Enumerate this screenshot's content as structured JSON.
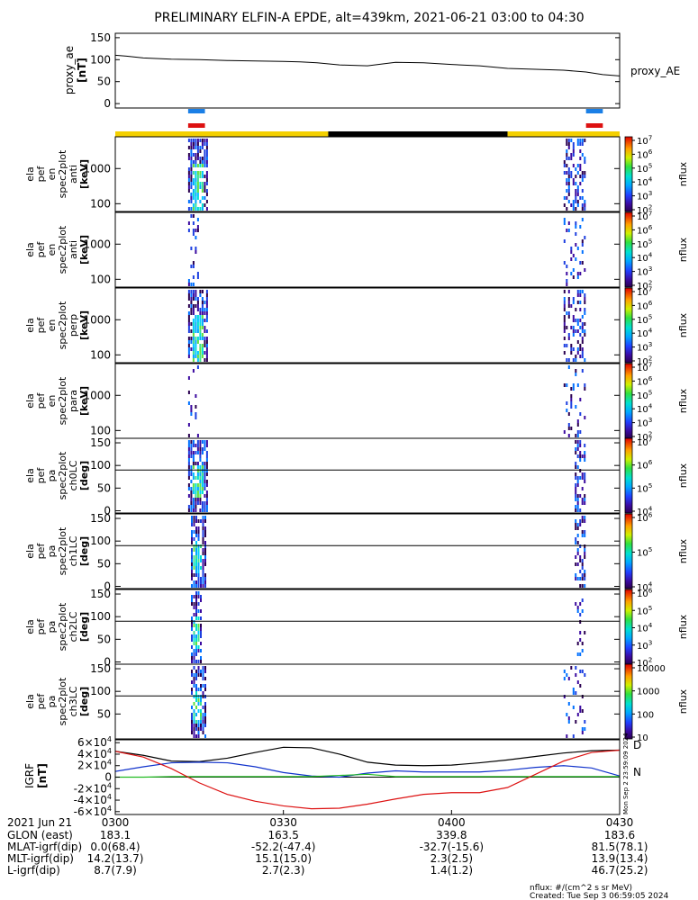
{
  "title": "PRELIMINARY ELFIN-A EPDE, alt=439km, 2021-06-21 03:00 to 04:30",
  "colors": {
    "orbit_yellow": "#f4d000",
    "orbit_black": "#000000",
    "bar_blue": "#1a7fe6",
    "bar_red": "#dd1111",
    "mag_black": "#000000",
    "mag_blue": "#1133cc",
    "mag_green": "#22bb22",
    "mag_red": "#dd1111"
  },
  "time_axis": {
    "start": "03:00",
    "end": "04:30",
    "ticks": [
      "0300",
      "0330",
      "0400",
      "0430"
    ]
  },
  "chart_data": [
    {
      "id": "proxy_ae",
      "type": "line",
      "ylabel": "proxy_ae [nT]",
      "legend": "proxy_AE",
      "ylim": [
        -10,
        160
      ],
      "yticks": [
        "0",
        "50",
        "100",
        "150"
      ],
      "x_minutes": [
        0,
        2,
        5,
        10,
        15,
        20,
        25,
        30,
        33,
        36,
        40,
        45,
        50,
        55,
        60,
        65,
        70,
        75,
        80,
        84,
        87,
        90
      ],
      "values": [
        110,
        108,
        104,
        101,
        100,
        98,
        97,
        96,
        95,
        93,
        88,
        86,
        94,
        93,
        89,
        86,
        80,
        78,
        76,
        72,
        66,
        63
      ]
    },
    {
      "id": "science_zones",
      "type": "bar",
      "intervals_minutes": [
        [
          13,
          16
        ],
        [
          84,
          87
        ]
      ],
      "series": [
        "blue",
        "red"
      ]
    },
    {
      "id": "orbit_bar",
      "type": "bar",
      "segments": [
        {
          "from": 0,
          "to": 38,
          "color": "yellow"
        },
        {
          "from": 38,
          "to": 70,
          "color": "black"
        },
        {
          "from": 70,
          "to": 90,
          "color": "yellow"
        }
      ]
    },
    {
      "id": "spec_en_anti",
      "type": "heatmap",
      "ylabel": "ela pef en spec2plot anti [keV]",
      "yticks": [
        "100",
        "1000"
      ],
      "scale": "log",
      "colorbar": {
        "label": "nflux",
        "ticks": [
          "10^2",
          "10^3",
          "10^4",
          "10^5",
          "10^6",
          "10^7"
        ]
      },
      "bursts": [
        {
          "t_start": 13,
          "t_end": 16.5,
          "intensity": "high"
        },
        {
          "t_start": 80,
          "t_end": 84,
          "intensity": "medium"
        }
      ]
    },
    {
      "id": "spec_en_loss",
      "type": "heatmap",
      "ylabel": "ela pef en spec2plot anti [keV]",
      "yticks": [
        "100",
        "1000"
      ],
      "scale": "log",
      "colorbar": {
        "label": "nflux",
        "ticks": [
          "10^2",
          "10^3",
          "10^4",
          "10^5",
          "10^6",
          "10^7"
        ]
      },
      "bursts": [
        {
          "t_start": 13,
          "t_end": 15,
          "intensity": "low"
        },
        {
          "t_start": 80,
          "t_end": 84,
          "intensity": "low"
        }
      ]
    },
    {
      "id": "spec_en_perp",
      "type": "heatmap",
      "ylabel": "ela pef en spec2plot perp [keV]",
      "yticks": [
        "100",
        "1000"
      ],
      "scale": "log",
      "colorbar": {
        "label": "nflux",
        "ticks": [
          "10^2",
          "10^3",
          "10^4",
          "10^5",
          "10^6",
          "10^7"
        ]
      },
      "bursts": [
        {
          "t_start": 13,
          "t_end": 16.5,
          "intensity": "high"
        },
        {
          "t_start": 80,
          "t_end": 84,
          "intensity": "medium"
        }
      ]
    },
    {
      "id": "spec_en_para",
      "type": "heatmap",
      "ylabel": "ela pef en spec2plot para [keV]",
      "yticks": [
        "100",
        "1000"
      ],
      "scale": "log",
      "colorbar": {
        "label": "nflux",
        "ticks": [
          "10^2",
          "10^3",
          "10^4",
          "10^5",
          "10^6",
          "10^7"
        ]
      },
      "bursts": [
        {
          "t_start": 13,
          "t_end": 15,
          "intensity": "low"
        },
        {
          "t_start": 80,
          "t_end": 84,
          "intensity": "low"
        }
      ]
    },
    {
      "id": "spec_pa_ch0",
      "type": "heatmap",
      "ylabel": "ela pef pa spec2plot ch0LC [deg]",
      "yticks": [
        "0",
        "50",
        "100",
        "150"
      ],
      "ylim": [
        -5,
        160
      ],
      "refline": 90,
      "colorbar": {
        "label": "nflux",
        "ticks": [
          "10^4",
          "10^5",
          "10^6",
          "10^7"
        ]
      },
      "bursts": [
        {
          "t_start": 13,
          "t_end": 16.5,
          "intensity": "high"
        },
        {
          "t_start": 82,
          "t_end": 84,
          "intensity": "medium"
        }
      ]
    },
    {
      "id": "spec_pa_ch1",
      "type": "heatmap",
      "ylabel": "ela pef pa spec2plot ch1LC [deg]",
      "yticks": [
        "0",
        "50",
        "100",
        "150"
      ],
      "ylim": [
        -5,
        160
      ],
      "refline": 90,
      "colorbar": {
        "label": "nflux",
        "ticks": [
          "10^4",
          "10^5",
          "10^6"
        ]
      },
      "bursts": [
        {
          "t_start": 13.5,
          "t_end": 16,
          "intensity": "high"
        },
        {
          "t_start": 82,
          "t_end": 84,
          "intensity": "medium"
        }
      ]
    },
    {
      "id": "spec_pa_ch2",
      "type": "heatmap",
      "ylabel": "ela pef pa spec2plot ch2LC [deg]",
      "yticks": [
        "0",
        "50",
        "100",
        "150"
      ],
      "ylim": [
        -5,
        160
      ],
      "refline": 90,
      "colorbar": {
        "label": "nflux",
        "ticks": [
          "10^2",
          "10^3",
          "10^4",
          "10^5",
          "10^6"
        ]
      },
      "bursts": [
        {
          "t_start": 13.5,
          "t_end": 15.5,
          "intensity": "high"
        },
        {
          "t_start": 82,
          "t_end": 84,
          "intensity": "low"
        }
      ]
    },
    {
      "id": "spec_pa_ch3",
      "type": "heatmap",
      "ylabel": "ela pef pa spec2plot ch3LC [deg]",
      "yticks": [
        "50",
        "100",
        "150"
      ],
      "ylim": [
        -5,
        160
      ],
      "refline": 90,
      "colorbar": {
        "label": "nflux",
        "ticks": [
          "10",
          "100",
          "1000",
          "10000"
        ]
      },
      "bursts": [
        {
          "t_start": 13.5,
          "t_end": 16,
          "intensity": "high"
        },
        {
          "t_start": 80,
          "t_end": 84,
          "intensity": "low"
        }
      ]
    },
    {
      "id": "igrf",
      "type": "line",
      "ylabel": "IGRF [nT]",
      "ylim": [
        -65000,
        65000
      ],
      "yticks": [
        "-6×10^4",
        "-4×10^4",
        "-2×10^4",
        "0",
        "2×10^4",
        "4×10^4",
        "6×10^4"
      ],
      "x_minutes": [
        0,
        5,
        10,
        15,
        20,
        25,
        30,
        35,
        40,
        45,
        50,
        55,
        60,
        65,
        70,
        75,
        80,
        85,
        90
      ],
      "series": [
        {
          "name": "black",
          "values": [
            45000,
            38000,
            28000,
            27000,
            33000,
            43000,
            52000,
            51000,
            40000,
            26000,
            21000,
            20000,
            21000,
            25000,
            30000,
            36000,
            42000,
            46000,
            47000
          ]
        },
        {
          "name": "blue",
          "values": [
            10000,
            18000,
            25000,
            26000,
            25000,
            18000,
            8000,
            2000,
            0,
            7000,
            11000,
            9000,
            9000,
            9000,
            12000,
            17000,
            20000,
            16000,
            2000
          ]
        },
        {
          "name": "green",
          "values": [
            0,
            0,
            1000,
            1000,
            1000,
            1000,
            1000,
            1000,
            3000,
            5000,
            1000,
            1000,
            1000,
            1000,
            1000,
            1000,
            1000,
            1000,
            1000
          ]
        },
        {
          "name": "red",
          "values": [
            45000,
            35000,
            15000,
            -10000,
            -30000,
            -42000,
            -50000,
            -55000,
            -54000,
            -47000,
            -38000,
            -30000,
            -27000,
            -27000,
            -18000,
            5000,
            28000,
            43000,
            47000
          ]
        }
      ],
      "side_labels": [
        "D",
        "N"
      ],
      "stamp": "Mon Sep  2 23:59:09 2024"
    }
  ],
  "footer": {
    "rows": [
      {
        "label": "2021 Jun 21",
        "values": [
          "0300",
          "0330",
          "0400",
          "0430"
        ]
      },
      {
        "label": "GLON (east)",
        "values": [
          "183.1",
          "163.5",
          "339.8",
          "183.6"
        ]
      },
      {
        "label": "MLAT-igrf(dip)",
        "values": [
          "0.0(68.4)",
          "-52.2(-47.4)",
          "-32.7(-15.6)",
          "81.5(78.1)"
        ]
      },
      {
        "label": "MLT-igrf(dip)",
        "values": [
          "14.2(13.7)",
          "15.1(15.0)",
          "2.3(2.5)",
          "13.9(13.4)"
        ]
      },
      {
        "label": "L-igrf(dip)",
        "values": [
          "8.7(7.9)",
          "2.7(2.3)",
          "1.4(1.2)",
          "46.7(25.2)"
        ]
      }
    ],
    "units_note": "nflux: #/(cm^2 s sr MeV)",
    "created": "Created: Tue Sep  3 06:59:05 2024"
  }
}
